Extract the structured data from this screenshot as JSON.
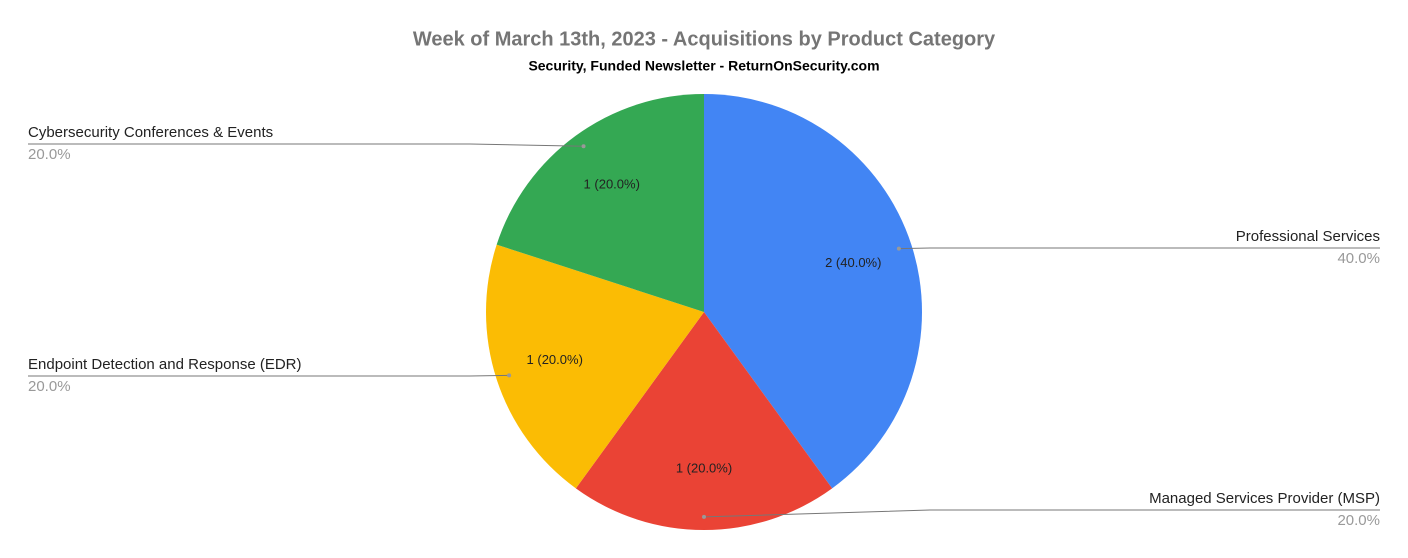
{
  "chart_data": {
    "type": "pie",
    "title": "Week of March 13th, 2023 - Acquisitions by Product Category",
    "subtitle": "Security, Funded Newsletter - ReturnOnSecurity.com",
    "categories": [
      "Professional Services",
      "Managed Services Provider (MSP)",
      "Endpoint Detection and Response (EDR)",
      "Cybersecurity Conferences & Events"
    ],
    "values": [
      2,
      1,
      1,
      1
    ],
    "value_labels": [
      "2 (40.0%)",
      "1 (20.0%)",
      "1 (20.0%)",
      "1 (20.0%)"
    ],
    "percentages": [
      40,
      20,
      20,
      20
    ],
    "percentage_labels": [
      "40.0%",
      "20.0%",
      "20.0%",
      "20.0%"
    ],
    "colors": [
      "#4285f4",
      "#ea4335",
      "#fbbc04",
      "#34a853"
    ]
  }
}
